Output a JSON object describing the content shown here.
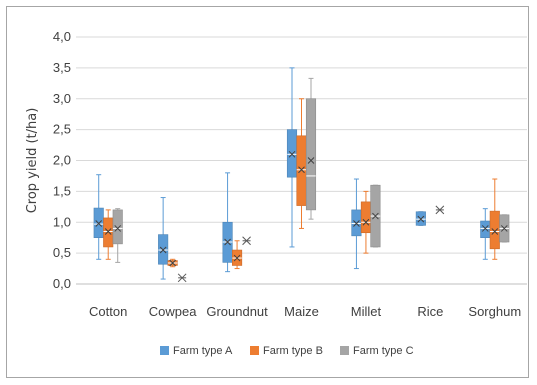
{
  "chart_data": {
    "type": "box",
    "ylabel": "Crop yield (t/ha)",
    "ylim": [
      0,
      4
    ],
    "ytick_labels": [
      "0,0",
      "0,5",
      "1,0",
      "1,5",
      "2,0",
      "2,5",
      "3,0",
      "3,5",
      "4,0"
    ],
    "categories": [
      "Cotton",
      "Cowpea",
      "Groundnut",
      "Maize",
      "Millet",
      "Rice",
      "Sorghum"
    ],
    "grid": true,
    "legend_position": "bottom",
    "series": [
      {
        "name": "Farm type A",
        "color": "#5b9bd5",
        "boxes": [
          {
            "min": 0.4,
            "q1": 0.75,
            "median": 0.97,
            "q3": 1.23,
            "max": 1.77,
            "mean": 0.98
          },
          {
            "min": 0.08,
            "q1": 0.32,
            "median": 0.55,
            "q3": 0.8,
            "max": 1.4,
            "mean": 0.55
          },
          {
            "min": 0.2,
            "q1": 0.35,
            "median": 0.68,
            "q3": 1.0,
            "max": 1.8,
            "mean": 0.68
          },
          {
            "min": 0.6,
            "q1": 1.73,
            "median": 2.1,
            "q3": 2.5,
            "max": 3.5,
            "mean": 2.1
          },
          {
            "min": 0.25,
            "q1": 0.78,
            "median": 0.98,
            "q3": 1.2,
            "max": 1.7,
            "mean": 0.98
          },
          {
            "min": 0.95,
            "q1": 0.95,
            "median": 1.05,
            "q3": 1.17,
            "max": 1.17,
            "mean": 1.05
          },
          {
            "min": 0.4,
            "q1": 0.75,
            "median": 0.9,
            "q3": 1.02,
            "max": 1.22,
            "mean": 0.9
          }
        ]
      },
      {
        "name": "Farm type B",
        "color": "#ed7d31",
        "boxes": [
          {
            "min": 0.4,
            "q1": 0.6,
            "median": 0.85,
            "q3": 1.07,
            "max": 1.2,
            "mean": 0.85
          },
          {
            "min": 0.28,
            "q1": 0.3,
            "median": 0.34,
            "q3": 0.38,
            "max": 0.4,
            "mean": 0.34
          },
          {
            "min": 0.25,
            "q1": 0.3,
            "median": 0.42,
            "q3": 0.55,
            "max": 0.7,
            "mean": 0.42
          },
          {
            "min": 0.9,
            "q1": 1.27,
            "median": 1.85,
            "q3": 2.4,
            "max": 3.0,
            "mean": 1.85
          },
          {
            "min": 0.5,
            "q1": 0.83,
            "median": 1.0,
            "q3": 1.33,
            "max": 1.5,
            "mean": 1.0
          },
          null,
          {
            "min": 0.4,
            "q1": 0.57,
            "median": 0.85,
            "q3": 1.18,
            "max": 1.7,
            "mean": 0.85
          }
        ]
      },
      {
        "name": "Farm type C",
        "color": "#a5a5a5",
        "boxes": [
          {
            "min": 0.35,
            "q1": 0.65,
            "median": 0.9,
            "q3": 1.2,
            "max": 1.22,
            "mean": 0.9
          },
          {
            "min": 0.1,
            "q1": 0.1,
            "median": 0.1,
            "q3": 0.1,
            "max": 0.1,
            "mean": 0.1
          },
          {
            "min": 0.7,
            "q1": 0.7,
            "median": 0.7,
            "q3": 0.7,
            "max": 0.7,
            "mean": 0.7
          },
          {
            "min": 1.05,
            "q1": 1.2,
            "median": 1.75,
            "q3": 3.0,
            "max": 3.33,
            "mean": 2.0
          },
          {
            "min": 0.6,
            "q1": 0.6,
            "median": 1.1,
            "q3": 1.6,
            "max": 1.6,
            "mean": 1.1
          },
          {
            "min": 1.2,
            "q1": 1.2,
            "median": 1.2,
            "q3": 1.2,
            "max": 1.2,
            "mean": 1.2
          },
          {
            "min": 0.68,
            "q1": 0.68,
            "median": 0.9,
            "q3": 1.12,
            "max": 1.12,
            "mean": 0.9
          }
        ]
      }
    ]
  }
}
